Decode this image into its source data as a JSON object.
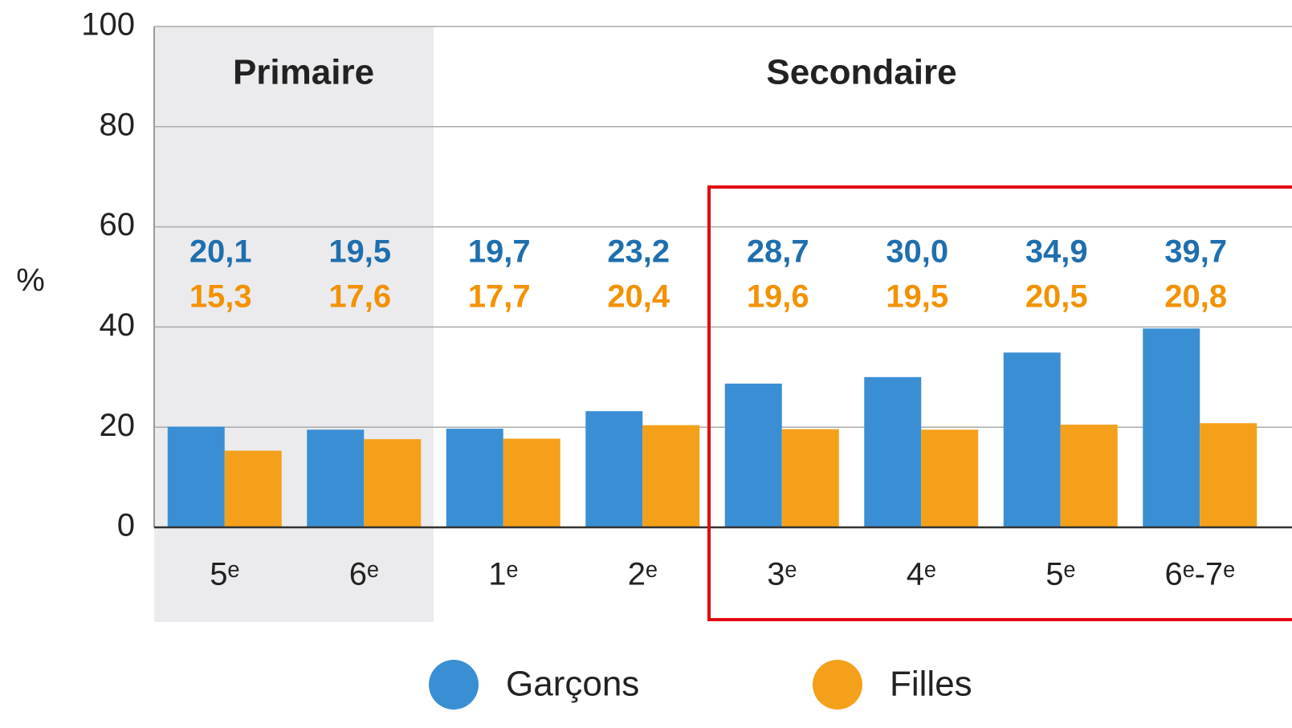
{
  "chart_data": {
    "type": "bar",
    "y_label": "%",
    "sections": [
      "Primaire",
      "Secondaire"
    ],
    "categories": [
      "5ᵉ",
      "6ᵉ",
      "1ᵉ",
      "2ᵉ",
      "3ᵉ",
      "4ᵉ",
      "5ᵉ",
      "6ᵉ-7ᵉ"
    ],
    "series": [
      {
        "name": "Garçons",
        "color": "#3a8fd4",
        "label_color": "#1f6fae",
        "values": [
          20.1,
          19.5,
          19.7,
          23.2,
          28.7,
          30.0,
          34.9,
          39.7
        ],
        "value_labels": [
          "20,1",
          "19,5",
          "19,7",
          "23,2",
          "28,7",
          "30,0",
          "34,9",
          "39,7"
        ]
      },
      {
        "name": "Filles",
        "color": "#f5a01a",
        "label_color": "#f39200",
        "values": [
          15.3,
          17.6,
          17.7,
          20.4,
          19.6,
          19.5,
          20.5,
          20.8
        ],
        "value_labels": [
          "15,3",
          "17,6",
          "17,7",
          "20,4",
          "19,6",
          "19,5",
          "20,5",
          "20,8"
        ]
      }
    ],
    "ylim": [
      0,
      100
    ],
    "yticks": [
      0,
      20,
      40,
      60,
      80,
      100
    ],
    "grid": true
  }
}
